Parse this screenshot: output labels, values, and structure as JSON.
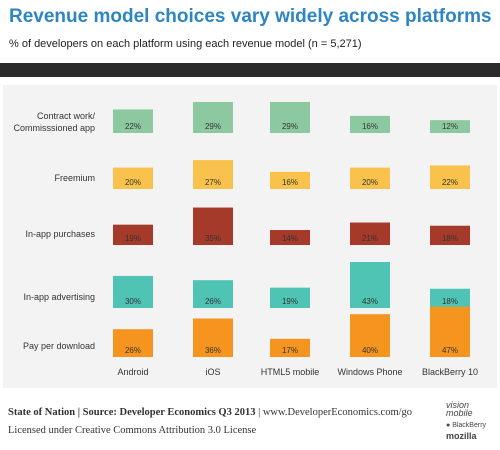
{
  "header": {
    "title": "Revenue model choices vary widely across platforms",
    "subtitle": "% of developers on each platform using each revenue model (n = 5,271)"
  },
  "chart_data": {
    "type": "bar",
    "title": "Revenue model choices vary widely across platforms",
    "subtitle": "% of developers on each platform using each revenue model (n = 5,271)",
    "platforms": [
      "Android",
      "iOS",
      "HTML5 mobile",
      "Windows Phone",
      "BlackBerry 10"
    ],
    "series": [
      {
        "name": "Contract work/ Commisssioned app",
        "label_lines": [
          "Contract work/",
          "Commisssioned app"
        ],
        "color": "#8cc9a0",
        "values": [
          22,
          29,
          29,
          16,
          12
        ]
      },
      {
        "name": "Freemium",
        "label_lines": [
          "Freemium"
        ],
        "color": "#f9c24c",
        "values": [
          20,
          27,
          16,
          20,
          22
        ]
      },
      {
        "name": "In-app purchases",
        "label_lines": [
          "In-app purchases"
        ],
        "color": "#a63a2a",
        "values": [
          19,
          35,
          14,
          21,
          18
        ]
      },
      {
        "name": "In-app advertising",
        "label_lines": [
          "In-app advertising"
        ],
        "color": "#4fc4b4",
        "values": [
          30,
          26,
          19,
          43,
          18
        ]
      },
      {
        "name": "Pay per download",
        "label_lines": [
          "Pay per download"
        ],
        "color": "#f5941e",
        "values": [
          26,
          36,
          17,
          40,
          47
        ]
      }
    ],
    "value_suffix": "%"
  },
  "footer": {
    "source_bold": "State of Nation | Source: Developer Economics Q3 2013",
    "source_rest": " | www.DeveloperEconomics.com/go",
    "license": "Licensed under Creative Commons Attribution 3.0 License"
  },
  "logos": {
    "visionmobile": "vision mobile",
    "blackberry": "BlackBerry",
    "mozilla": "mozilla"
  }
}
